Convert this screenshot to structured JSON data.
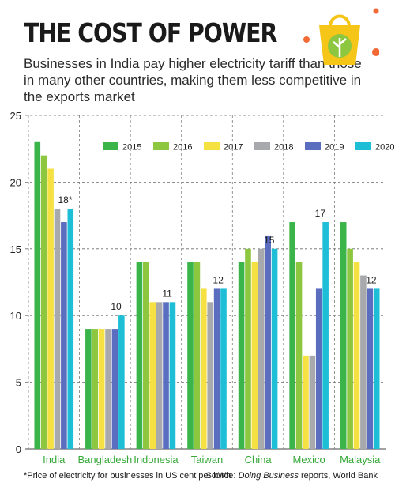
{
  "header": {
    "title": "THE COST OF POWER",
    "subtitle": "Businesses in India pay higher electricity tariff than those in many other countries, making them less competitive in the exports market"
  },
  "footer": {
    "footnote": "*Price of electricity for businesses in US cent per kWh",
    "source_prefix": "Source: ",
    "source_italic": "Doing Business",
    "source_rest": " reports, World Bank"
  },
  "logo": {
    "icon": "shopping-bag-leaf-icon"
  },
  "colors": {
    "2015": "#3bb54a",
    "2016": "#8dc63f",
    "2017": "#f5e142",
    "2018": "#a7a9ac",
    "2019": "#5b6dbf",
    "2020": "#1ebfd6",
    "category_label": "#35a838",
    "logo_bag": "#f5c518",
    "logo_dots": "#f26a36",
    "logo_leaf": "#8dc63f"
  },
  "chart_data": {
    "type": "bar",
    "categories": [
      "India",
      "Bangladesh",
      "Indonesia",
      "Taiwan",
      "China",
      "Mexico",
      "Malaysia"
    ],
    "series": [
      {
        "name": "2015",
        "values": [
          23,
          9,
          14,
          14,
          14,
          17,
          17
        ]
      },
      {
        "name": "2016",
        "values": [
          22,
          9,
          14,
          14,
          15,
          14,
          15
        ]
      },
      {
        "name": "2017",
        "values": [
          21,
          9,
          11,
          12,
          14,
          7,
          14
        ]
      },
      {
        "name": "2018",
        "values": [
          18,
          9,
          11,
          11,
          15,
          7,
          13
        ]
      },
      {
        "name": "2019",
        "values": [
          17,
          9,
          11,
          12,
          16,
          12,
          12
        ]
      },
      {
        "name": "2020",
        "values": [
          18,
          10,
          11,
          12,
          15,
          17,
          12
        ]
      }
    ],
    "data_labels": [
      "18*",
      "10",
      "11",
      "12",
      "15",
      "17",
      "12"
    ],
    "ylim": [
      0,
      25
    ],
    "yticks": [
      0,
      5,
      10,
      15,
      20,
      25
    ],
    "grid": true,
    "legend_position": "top-right",
    "xlabel": "",
    "ylabel": ""
  }
}
